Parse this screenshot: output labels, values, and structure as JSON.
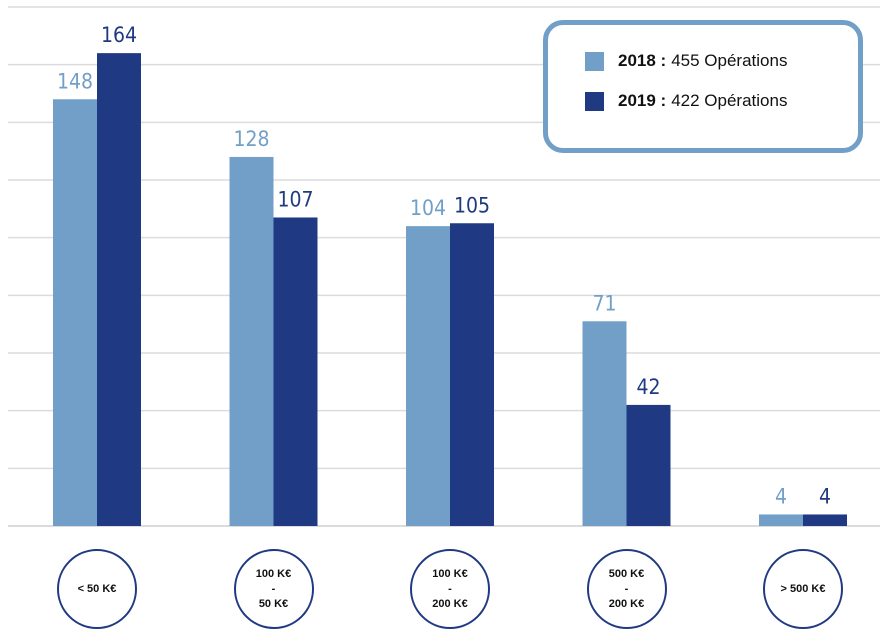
{
  "chart_data": {
    "type": "bar",
    "categories": [
      "< 50 K€",
      "100 K€\n-\n50 K€",
      "100 K€\n-\n200 K€",
      "500 K€\n-\n200 K€",
      "> 500 K€"
    ],
    "series": [
      {
        "name": "2018 :",
        "total": "455 Opérations",
        "color": "#729fc8",
        "values": [
          148,
          128,
          104,
          71,
          4
        ]
      },
      {
        "name": "2019 :",
        "total": "422 Opérations",
        "color": "#1f3a82",
        "values": [
          164,
          107,
          105,
          42,
          4
        ]
      }
    ],
    "ylim": [
      0,
      180
    ],
    "yticks": [
      0,
      20,
      40,
      60,
      80,
      100,
      120,
      140,
      160,
      180
    ],
    "grid": true
  }
}
